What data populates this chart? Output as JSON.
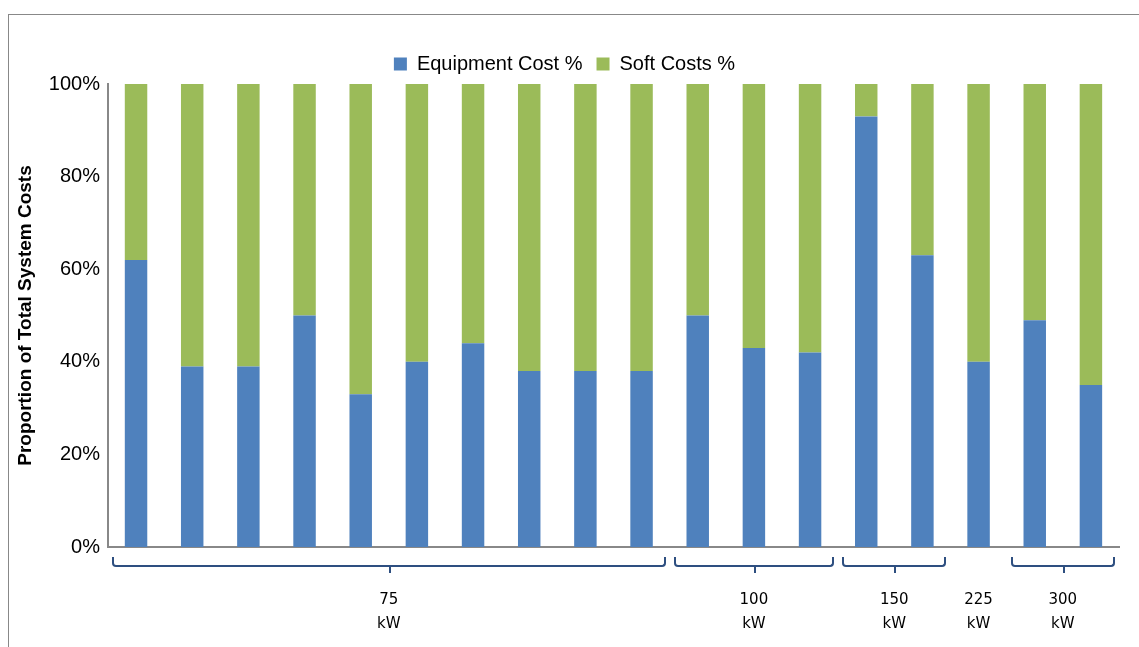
{
  "chart_data": {
    "type": "bar",
    "stacked": true,
    "ylabel": "Proportion of Total System Costs",
    "categories": [
      null,
      null,
      null,
      null,
      null,
      null,
      null,
      null,
      null,
      null,
      null,
      null,
      null,
      null,
      null,
      null,
      null,
      null
    ],
    "series": [
      {
        "name": "Equipment Cost %",
        "color": "#4f81bd",
        "values": [
          62,
          39,
          39,
          50,
          33,
          40,
          44,
          38,
          38,
          38,
          50,
          43,
          42,
          93,
          63,
          40,
          49,
          35
        ]
      },
      {
        "name": "Soft Costs %",
        "color": "#9bbb59",
        "values": [
          38,
          61,
          61,
          50,
          67,
          60,
          56,
          62,
          62,
          62,
          50,
          57,
          58,
          7,
          37,
          60,
          51,
          65
        ]
      }
    ],
    "ylim": [
      0,
      100
    ],
    "yticks": [
      {
        "value": 0,
        "label": "0%"
      },
      {
        "value": 20,
        "label": "20%"
      },
      {
        "value": 40,
        "label": "40%"
      },
      {
        "value": 60,
        "label": "60%"
      },
      {
        "value": 80,
        "label": "80%"
      },
      {
        "value": 100,
        "label": "100%"
      }
    ],
    "grid": false,
    "legend": "top",
    "annotations": [
      "75 kW",
      "100 kW",
      "150 kW",
      "225 kW",
      "300 kW"
    ]
  }
}
